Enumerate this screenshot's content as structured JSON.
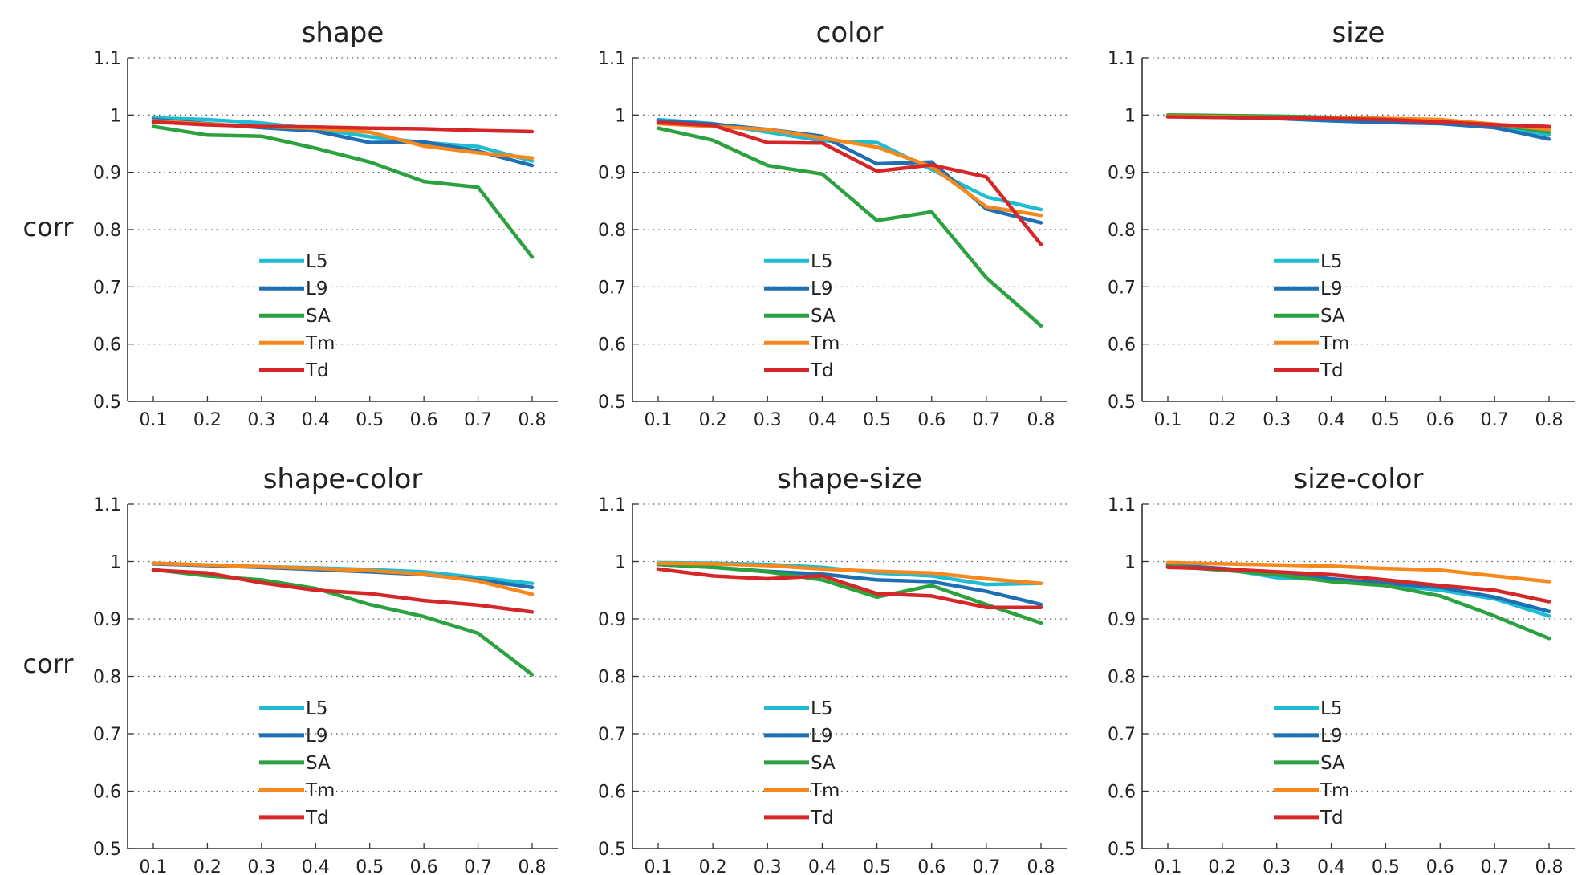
{
  "figure": {
    "row_ylabel": "corr"
  },
  "colors": {
    "L5": "#1fbcd2",
    "L9": "#1f6fb4",
    "SA": "#2ca13f",
    "Tm": "#f7881d",
    "Td": "#d62728"
  },
  "chart_data": [
    {
      "type": "line",
      "title": "shape",
      "xlabel": "",
      "ylabel": "corr",
      "x": [
        0.1,
        0.2,
        0.3,
        0.4,
        0.5,
        0.6,
        0.7,
        0.8
      ],
      "ylim": [
        0.5,
        1.1
      ],
      "yticks": [
        "0.5",
        "0.6",
        "0.7",
        "0.8",
        "0.9",
        "1",
        "1.1"
      ],
      "xticks": [
        "0.1",
        "0.2",
        "0.3",
        "0.4",
        "0.5",
        "0.6",
        "0.7",
        "0.8"
      ],
      "grid": "horizontal dotted",
      "legend": "lower-center",
      "series": [
        {
          "name": "L5",
          "values": [
            0.995,
            0.992,
            0.986,
            0.976,
            0.962,
            0.952,
            0.945,
            0.92
          ]
        },
        {
          "name": "L9",
          "values": [
            0.992,
            0.985,
            0.978,
            0.972,
            0.952,
            0.953,
            0.937,
            0.912
          ]
        },
        {
          "name": "SA",
          "values": [
            0.98,
            0.965,
            0.963,
            0.942,
            0.918,
            0.884,
            0.874,
            0.752
          ]
        },
        {
          "name": "Tm",
          "values": [
            0.99,
            0.984,
            0.98,
            0.977,
            0.97,
            0.946,
            0.934,
            0.925
          ]
        },
        {
          "name": "Td",
          "values": [
            0.988,
            0.983,
            0.98,
            0.979,
            0.977,
            0.976,
            0.973,
            0.971
          ]
        }
      ]
    },
    {
      "type": "line",
      "title": "color",
      "xlabel": "",
      "ylabel": "",
      "x": [
        0.1,
        0.2,
        0.3,
        0.4,
        0.5,
        0.6,
        0.7,
        0.8
      ],
      "ylim": [
        0.5,
        1.1
      ],
      "yticks": [
        "0.5",
        "0.6",
        "0.7",
        "0.8",
        "0.9",
        "1",
        "1.1"
      ],
      "xticks": [
        "0.1",
        "0.2",
        "0.3",
        "0.4",
        "0.5",
        "0.6",
        "0.7",
        "0.8"
      ],
      "grid": "horizontal dotted",
      "legend": "lower-center",
      "series": [
        {
          "name": "L5",
          "values": [
            0.992,
            0.985,
            0.97,
            0.955,
            0.952,
            0.905,
            0.857,
            0.835
          ]
        },
        {
          "name": "L9",
          "values": [
            0.99,
            0.984,
            0.975,
            0.963,
            0.915,
            0.918,
            0.836,
            0.812
          ]
        },
        {
          "name": "SA",
          "values": [
            0.977,
            0.956,
            0.912,
            0.897,
            0.816,
            0.831,
            0.716,
            0.632
          ]
        },
        {
          "name": "Tm",
          "values": [
            0.985,
            0.98,
            0.975,
            0.96,
            0.944,
            0.91,
            0.84,
            0.825
          ]
        },
        {
          "name": "Td",
          "values": [
            0.987,
            0.982,
            0.952,
            0.951,
            0.902,
            0.913,
            0.892,
            0.774
          ]
        }
      ]
    },
    {
      "type": "line",
      "title": "size",
      "xlabel": "",
      "ylabel": "",
      "x": [
        0.1,
        0.2,
        0.3,
        0.4,
        0.5,
        0.6,
        0.7,
        0.8
      ],
      "ylim": [
        0.5,
        1.1
      ],
      "yticks": [
        "0.5",
        "0.6",
        "0.7",
        "0.8",
        "0.9",
        "1",
        "1.1"
      ],
      "xticks": [
        "0.1",
        "0.2",
        "0.3",
        "0.4",
        "0.5",
        "0.6",
        "0.7",
        "0.8"
      ],
      "grid": "horizontal dotted",
      "legend": "lower-center",
      "series": [
        {
          "name": "L5",
          "values": [
            0.999,
            0.998,
            0.997,
            0.995,
            0.992,
            0.988,
            0.982,
            0.965
          ]
        },
        {
          "name": "L9",
          "values": [
            0.998,
            0.996,
            0.994,
            0.99,
            0.987,
            0.985,
            0.978,
            0.958
          ]
        },
        {
          "name": "SA",
          "values": [
            1.0,
            0.999,
            0.998,
            0.996,
            0.994,
            0.99,
            0.984,
            0.97
          ]
        },
        {
          "name": "Tm",
          "values": [
            0.998,
            0.997,
            0.996,
            0.995,
            0.994,
            0.992,
            0.984,
            0.975
          ]
        },
        {
          "name": "Td",
          "values": [
            0.997,
            0.996,
            0.995,
            0.994,
            0.992,
            0.988,
            0.983,
            0.98
          ]
        }
      ]
    },
    {
      "type": "line",
      "title": "shape-color",
      "xlabel": "",
      "ylabel": "corr",
      "x": [
        0.1,
        0.2,
        0.3,
        0.4,
        0.5,
        0.6,
        0.7,
        0.8
      ],
      "ylim": [
        0.5,
        1.1
      ],
      "yticks": [
        "0.5",
        "0.6",
        "0.7",
        "0.8",
        "0.9",
        "1",
        "1.1"
      ],
      "xticks": [
        "0.1",
        "0.2",
        "0.3",
        "0.4",
        "0.5",
        "0.6",
        "0.7",
        "0.8"
      ],
      "grid": "horizontal dotted",
      "legend": "lower-center",
      "series": [
        {
          "name": "L5",
          "values": [
            0.997,
            0.994,
            0.991,
            0.989,
            0.986,
            0.982,
            0.972,
            0.962
          ]
        },
        {
          "name": "L9",
          "values": [
            0.996,
            0.993,
            0.99,
            0.986,
            0.982,
            0.977,
            0.968,
            0.955
          ]
        },
        {
          "name": "SA",
          "values": [
            0.986,
            0.975,
            0.968,
            0.953,
            0.925,
            0.904,
            0.875,
            0.803
          ]
        },
        {
          "name": "Tm",
          "values": [
            0.997,
            0.994,
            0.991,
            0.988,
            0.984,
            0.978,
            0.966,
            0.943
          ]
        },
        {
          "name": "Td",
          "values": [
            0.985,
            0.98,
            0.963,
            0.95,
            0.944,
            0.932,
            0.924,
            0.912
          ]
        }
      ]
    },
    {
      "type": "line",
      "title": "shape-size",
      "xlabel": "",
      "ylabel": "",
      "x": [
        0.1,
        0.2,
        0.3,
        0.4,
        0.5,
        0.6,
        0.7,
        0.8
      ],
      "ylim": [
        0.5,
        1.1
      ],
      "yticks": [
        "0.5",
        "0.6",
        "0.7",
        "0.8",
        "0.9",
        "1",
        "1.1"
      ],
      "xticks": [
        "0.1",
        "0.2",
        "0.3",
        "0.4",
        "0.5",
        "0.6",
        "0.7",
        "0.8"
      ],
      "grid": "horizontal dotted",
      "legend": "lower-center",
      "series": [
        {
          "name": "L5",
          "values": [
            0.998,
            0.997,
            0.995,
            0.99,
            0.98,
            0.975,
            0.96,
            0.962
          ]
        },
        {
          "name": "L9",
          "values": [
            0.995,
            0.99,
            0.983,
            0.978,
            0.968,
            0.965,
            0.948,
            0.925
          ]
        },
        {
          "name": "SA",
          "values": [
            0.995,
            0.99,
            0.982,
            0.968,
            0.938,
            0.958,
            0.925,
            0.893
          ]
        },
        {
          "name": "Tm",
          "values": [
            0.997,
            0.996,
            0.993,
            0.987,
            0.983,
            0.98,
            0.97,
            0.962
          ]
        },
        {
          "name": "Td",
          "values": [
            0.987,
            0.975,
            0.97,
            0.975,
            0.944,
            0.94,
            0.92,
            0.92
          ]
        }
      ]
    },
    {
      "type": "line",
      "title": "size-color",
      "xlabel": "",
      "ylabel": "",
      "x": [
        0.1,
        0.2,
        0.3,
        0.4,
        0.5,
        0.6,
        0.7,
        0.8
      ],
      "ylim": [
        0.5,
        1.1
      ],
      "yticks": [
        "0.5",
        "0.6",
        "0.7",
        "0.8",
        "0.9",
        "1",
        "1.1"
      ],
      "xticks": [
        "0.1",
        "0.2",
        "0.3",
        "0.4",
        "0.5",
        "0.6",
        "0.7",
        "0.8"
      ],
      "grid": "horizontal dotted",
      "legend": "lower-center",
      "series": [
        {
          "name": "L5",
          "values": [
            0.993,
            0.988,
            0.972,
            0.968,
            0.96,
            0.95,
            0.935,
            0.905
          ]
        },
        {
          "name": "L9",
          "values": [
            0.994,
            0.988,
            0.98,
            0.97,
            0.962,
            0.955,
            0.938,
            0.913
          ]
        },
        {
          "name": "SA",
          "values": [
            0.992,
            0.985,
            0.977,
            0.965,
            0.958,
            0.94,
            0.905,
            0.866
          ]
        },
        {
          "name": "Tm",
          "values": [
            0.998,
            0.996,
            0.994,
            0.992,
            0.988,
            0.985,
            0.975,
            0.965
          ]
        },
        {
          "name": "Td",
          "values": [
            0.99,
            0.987,
            0.982,
            0.977,
            0.968,
            0.958,
            0.95,
            0.93
          ]
        }
      ]
    }
  ]
}
